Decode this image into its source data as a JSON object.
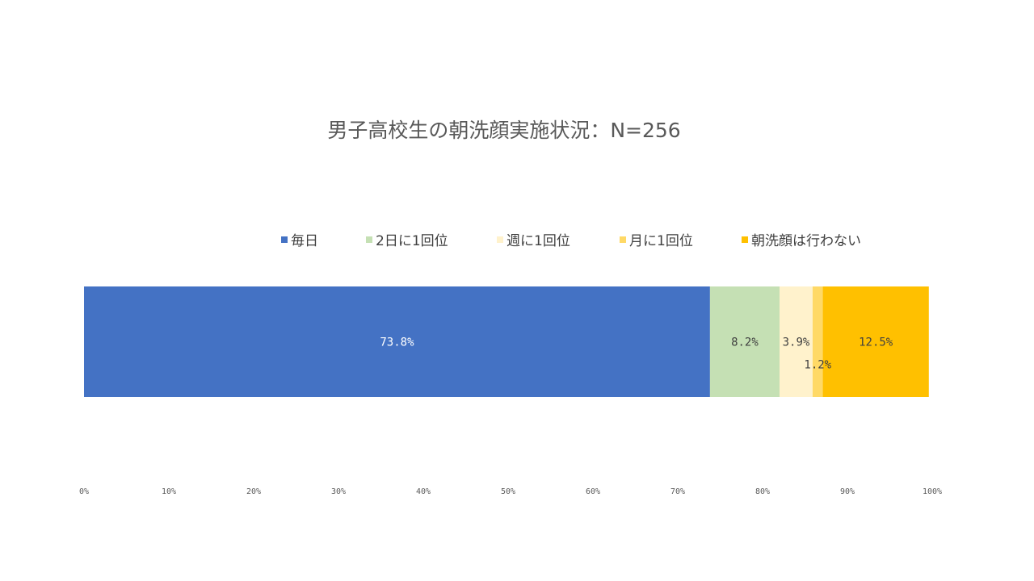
{
  "chart_data": {
    "type": "bar",
    "orientation": "horizontal",
    "stacked": "100%",
    "title": "男子高校生の朝洗顔実施状況：N=256",
    "categories": [
      ""
    ],
    "series": [
      {
        "name": "毎日",
        "values": [
          73.8
        ],
        "label": "73.8%",
        "color": "#4472C4"
      },
      {
        "name": "2日に1回位",
        "values": [
          8.2
        ],
        "label": "8.2%",
        "color": "#C5E0B4"
      },
      {
        "name": "週に1回位",
        "values": [
          3.9
        ],
        "label": "3.9%",
        "color": "#FFF2CC"
      },
      {
        "name": "月に1回位",
        "values": [
          1.2
        ],
        "label": "1.2%",
        "color": "#FFD966"
      },
      {
        "name": "朝洗顔は行わない",
        "values": [
          12.5
        ],
        "label": "12.5%",
        "color": "#FFC000"
      }
    ],
    "x_ticks": [
      "0%",
      "10%",
      "20%",
      "30%",
      "40%",
      "50%",
      "60%",
      "70%",
      "80%",
      "90%",
      "100%"
    ],
    "xlim": [
      0,
      100
    ],
    "grid": false,
    "legend_position": "top"
  }
}
